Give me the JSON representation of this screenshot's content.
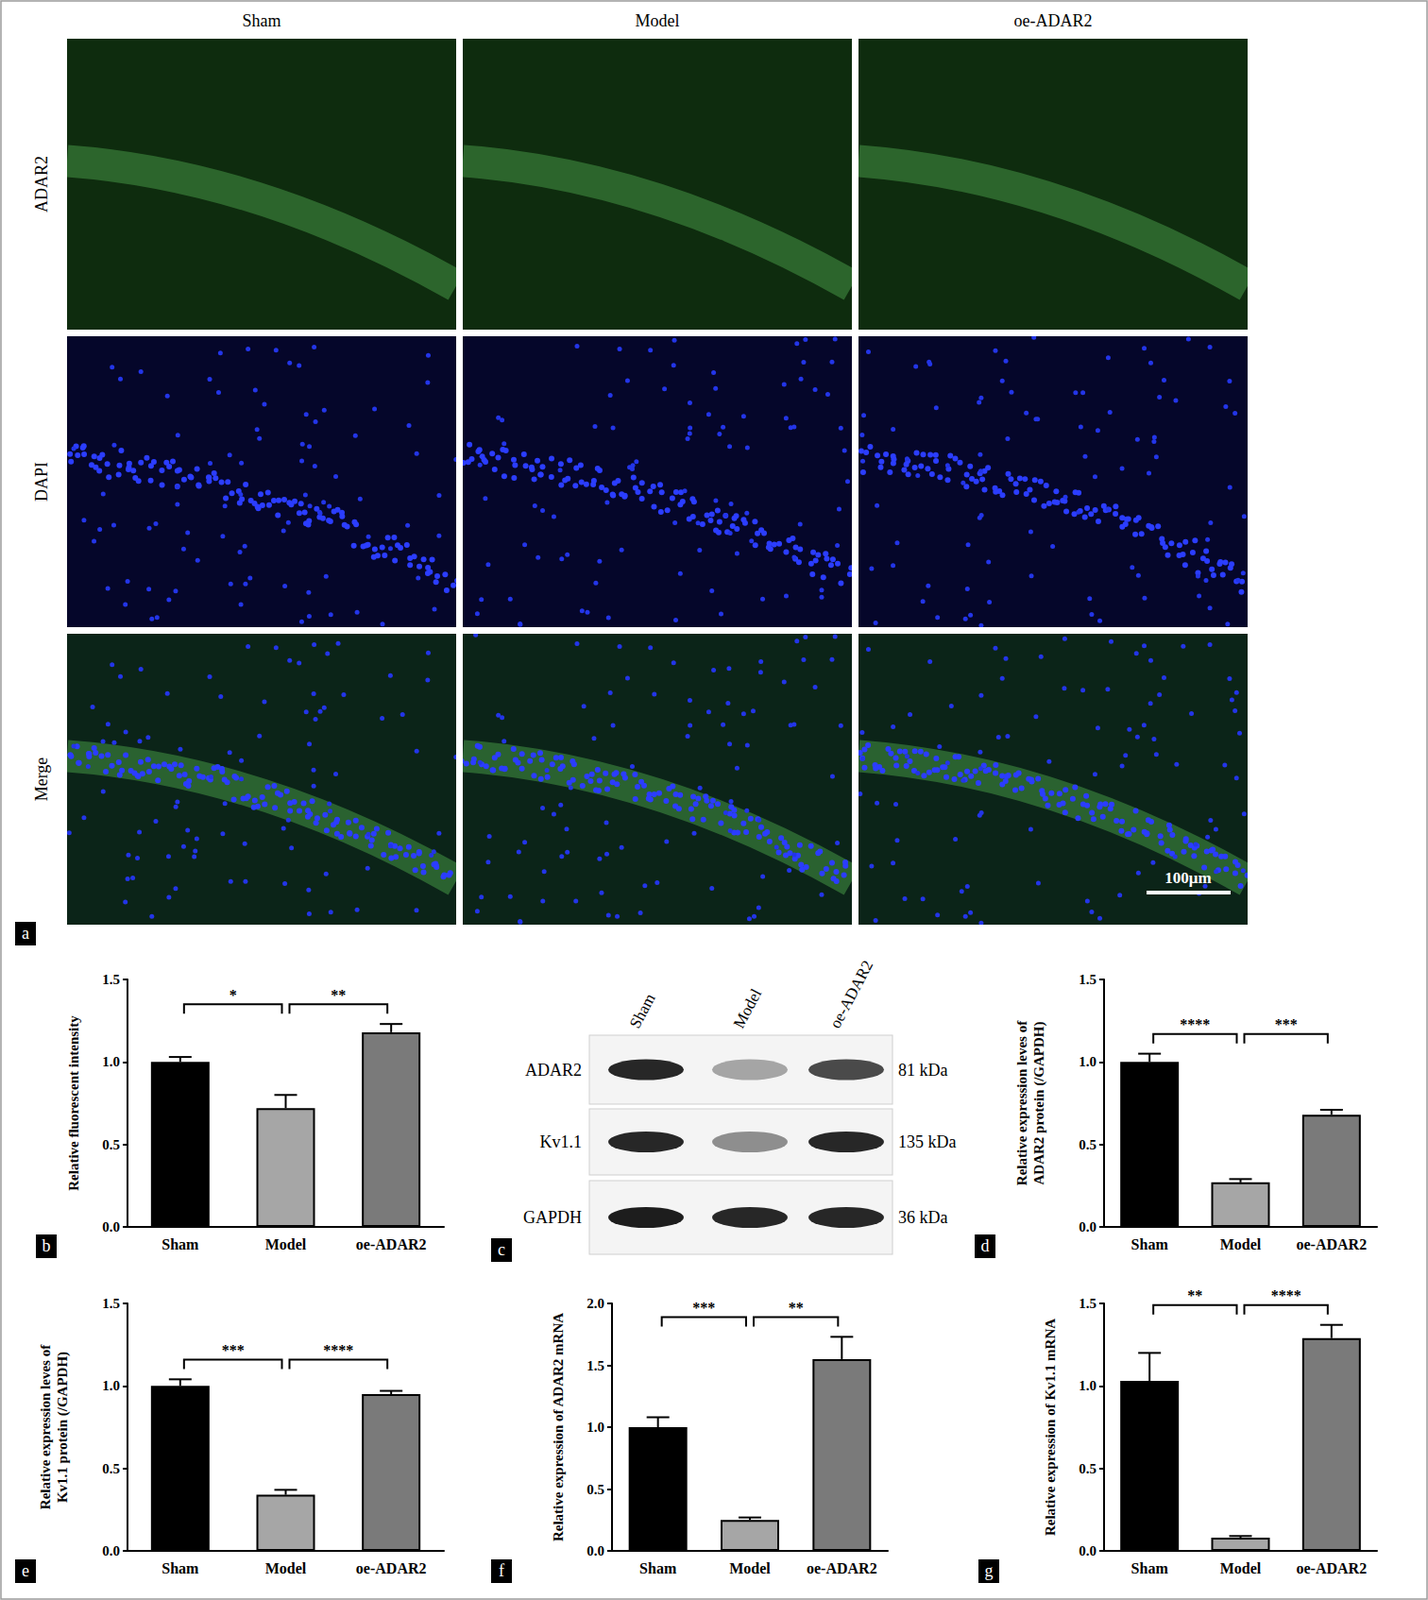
{
  "panel_a": {
    "label": "a",
    "columns": [
      "Sham",
      "Model",
      "oe-ADAR2"
    ],
    "rows": [
      "ADAR2",
      "DAPI",
      "Merge"
    ],
    "scale_bar": "100μm"
  },
  "panel_c": {
    "label": "c",
    "lanes": [
      "Sham",
      "Model",
      "oe-ADAR2"
    ],
    "bands": [
      {
        "name": "ADAR2",
        "size": "81 kDa",
        "intensity": [
          0.9,
          0.35,
          0.75
        ]
      },
      {
        "name": "Kv1.1",
        "size": "135 kDa",
        "intensity": [
          0.9,
          0.45,
          0.9
        ]
      },
      {
        "name": "GAPDH",
        "size": "36 kDa",
        "intensity": [
          0.95,
          0.9,
          0.9
        ]
      }
    ]
  },
  "chart_data": [
    {
      "panel": "b",
      "type": "bar",
      "ylabel": [
        "Relative fluorescent intensity"
      ],
      "categories": [
        "Sham",
        "Model",
        "oe-ADAR2"
      ],
      "values": [
        1.0,
        0.72,
        1.18
      ],
      "errors": [
        0.03,
        0.08,
        0.05
      ],
      "colors": [
        "#000000",
        "#a6a6a6",
        "#7a7a7a"
      ],
      "ylim": [
        0,
        1.5
      ],
      "yticks": [
        {
          "value": 0,
          "label": "0.0"
        },
        {
          "value": 0.5,
          "label": "0.5"
        },
        {
          "value": 1,
          "label": "1.0"
        },
        {
          "value": 1.5,
          "label": "1.5"
        }
      ],
      "comparisons": [
        {
          "between": [
            "Sham",
            "Model"
          ],
          "label": "*"
        },
        {
          "between": [
            "Model",
            "oe-ADAR2"
          ],
          "label": "**"
        }
      ]
    },
    {
      "panel": "d",
      "type": "bar",
      "ylabel": [
        "Relative expression leves of",
        "ADAR2 protein (/GAPDH)"
      ],
      "categories": [
        "Sham",
        "Model",
        "oe-ADAR2"
      ],
      "values": [
        1.0,
        0.27,
        0.68
      ],
      "errors": [
        0.05,
        0.02,
        0.03
      ],
      "colors": [
        "#000000",
        "#a6a6a6",
        "#7a7a7a"
      ],
      "ylim": [
        0,
        1.5
      ],
      "yticks": [
        {
          "value": 0,
          "label": "0.0"
        },
        {
          "value": 0.5,
          "label": "0.5"
        },
        {
          "value": 1,
          "label": "1.0"
        },
        {
          "value": 1.5,
          "label": "1.5"
        }
      ],
      "comparisons": [
        {
          "between": [
            "Sham",
            "Model"
          ],
          "label": "****"
        },
        {
          "between": [
            "Model",
            "oe-ADAR2"
          ],
          "label": "***"
        }
      ]
    },
    {
      "panel": "e",
      "type": "bar",
      "ylabel": [
        "Relative expression leves of",
        "Kv1.1 protein (/GAPDH)"
      ],
      "categories": [
        "Sham",
        "Model",
        "oe-ADAR2"
      ],
      "values": [
        1.0,
        0.34,
        0.95
      ],
      "errors": [
        0.04,
        0.03,
        0.02
      ],
      "colors": [
        "#000000",
        "#a6a6a6",
        "#7a7a7a"
      ],
      "ylim": [
        0,
        1.5
      ],
      "yticks": [
        {
          "value": 0,
          "label": "0.0"
        },
        {
          "value": 0.5,
          "label": "0.5"
        },
        {
          "value": 1,
          "label": "1.0"
        },
        {
          "value": 1.5,
          "label": "1.5"
        }
      ],
      "comparisons": [
        {
          "between": [
            "Sham",
            "Model"
          ],
          "label": "***"
        },
        {
          "between": [
            "Model",
            "oe-ADAR2"
          ],
          "label": "****"
        }
      ]
    },
    {
      "panel": "f",
      "type": "bar",
      "ylabel": [
        "Relative expression of ADAR2 mRNA"
      ],
      "categories": [
        "Sham",
        "Model",
        "oe-ADAR2"
      ],
      "values": [
        1.0,
        0.25,
        1.55
      ],
      "errors": [
        0.08,
        0.02,
        0.18
      ],
      "colors": [
        "#000000",
        "#a6a6a6",
        "#7a7a7a"
      ],
      "ylim": [
        0,
        2
      ],
      "yticks": [
        {
          "value": 0,
          "label": "0.0"
        },
        {
          "value": 0.5,
          "label": "0.5"
        },
        {
          "value": 1,
          "label": "1.0"
        },
        {
          "value": 1.5,
          "label": "1.5"
        },
        {
          "value": 2,
          "label": "2.0"
        }
      ],
      "comparisons": [
        {
          "between": [
            "Sham",
            "Model"
          ],
          "label": "***"
        },
        {
          "between": [
            "Model",
            "oe-ADAR2"
          ],
          "label": "**"
        }
      ]
    },
    {
      "panel": "g",
      "type": "bar",
      "ylabel": [
        "Relative expression of Kv1.1 mRNA"
      ],
      "categories": [
        "Sham",
        "Model",
        "oe-ADAR2"
      ],
      "values": [
        1.03,
        0.08,
        1.29
      ],
      "errors": [
        0.17,
        0.01,
        0.08
      ],
      "colors": [
        "#000000",
        "#a6a6a6",
        "#7a7a7a"
      ],
      "ylim": [
        0,
        1.5
      ],
      "yticks": [
        {
          "value": 0,
          "label": "0.0"
        },
        {
          "value": 0.5,
          "label": "0.5"
        },
        {
          "value": 1,
          "label": "1.0"
        },
        {
          "value": 1.5,
          "label": "1.5"
        }
      ],
      "comparisons": [
        {
          "between": [
            "Sham",
            "Model"
          ],
          "label": "**"
        },
        {
          "between": [
            "Model",
            "oe-ADAR2"
          ],
          "label": "****"
        }
      ]
    }
  ]
}
